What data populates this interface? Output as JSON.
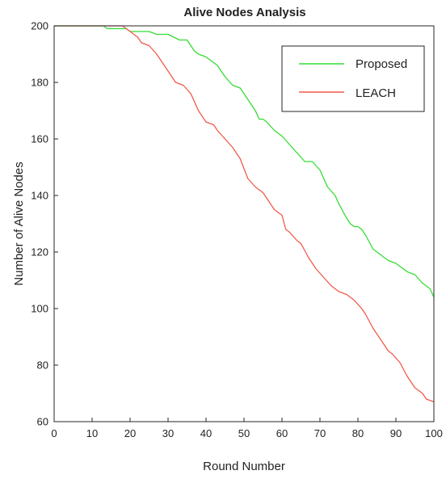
{
  "chart_data": {
    "type": "line",
    "title": "Alive Nodes Analysis",
    "xlabel": "Round Number",
    "ylabel": "Number of Alive Nodes",
    "xlim": [
      0,
      100
    ],
    "ylim": [
      60,
      200
    ],
    "xticks": [
      "0",
      "10",
      "20",
      "30",
      "40",
      "50",
      "60",
      "70",
      "80",
      "90",
      "100"
    ],
    "yticks": [
      "60",
      "80",
      "100",
      "120",
      "140",
      "160",
      "180",
      "200"
    ],
    "grid": false,
    "legend_position": "top-right",
    "series": [
      {
        "name": "Proposed",
        "color": "#33dd33",
        "x": [
          0,
          13,
          14,
          19,
          20,
          25,
          27,
          30,
          33,
          35,
          37,
          38,
          40,
          41,
          43,
          45,
          47,
          49,
          51,
          53,
          54,
          55,
          56,
          58,
          60,
          62,
          64,
          66,
          68,
          70,
          72,
          74,
          75,
          77,
          78,
          79,
          80,
          81,
          82,
          84,
          86,
          88,
          90,
          92,
          93,
          95,
          97,
          99,
          100
        ],
        "y": [
          200,
          200,
          199,
          199,
          198,
          198,
          197,
          197,
          195,
          195,
          191,
          190,
          189,
          188,
          186,
          182,
          179,
          178,
          174,
          170,
          167,
          167,
          166,
          163,
          161,
          158,
          155,
          152,
          152,
          149,
          143,
          140,
          137,
          132,
          130,
          129,
          129,
          128,
          126,
          121,
          119,
          117,
          116,
          114,
          113,
          112,
          109,
          107,
          104
        ]
      },
      {
        "name": "LEACH",
        "color": "#f05a4a",
        "x": [
          0,
          18,
          19,
          20,
          22,
          23,
          25,
          27,
          29,
          30,
          32,
          34,
          36,
          38,
          40,
          42,
          43,
          45,
          47,
          49,
          51,
          53,
          55,
          57,
          58,
          59,
          60,
          61,
          62,
          64,
          65,
          67,
          69,
          71,
          73,
          75,
          77,
          79,
          81,
          82,
          84,
          86,
          88,
          89,
          91,
          93,
          95,
          97,
          98,
          100
        ],
        "y": [
          200,
          200,
          199,
          198,
          196,
          194,
          193,
          190,
          186,
          184,
          180,
          179,
          176,
          170,
          166,
          165,
          163,
          160,
          157,
          153,
          146,
          143,
          141,
          137,
          135,
          134,
          133,
          128,
          127,
          124,
          123,
          118,
          114,
          111,
          108,
          106,
          105,
          103,
          100,
          98,
          93,
          89,
          85,
          84,
          81,
          76,
          72,
          70,
          68,
          67
        ]
      }
    ]
  }
}
